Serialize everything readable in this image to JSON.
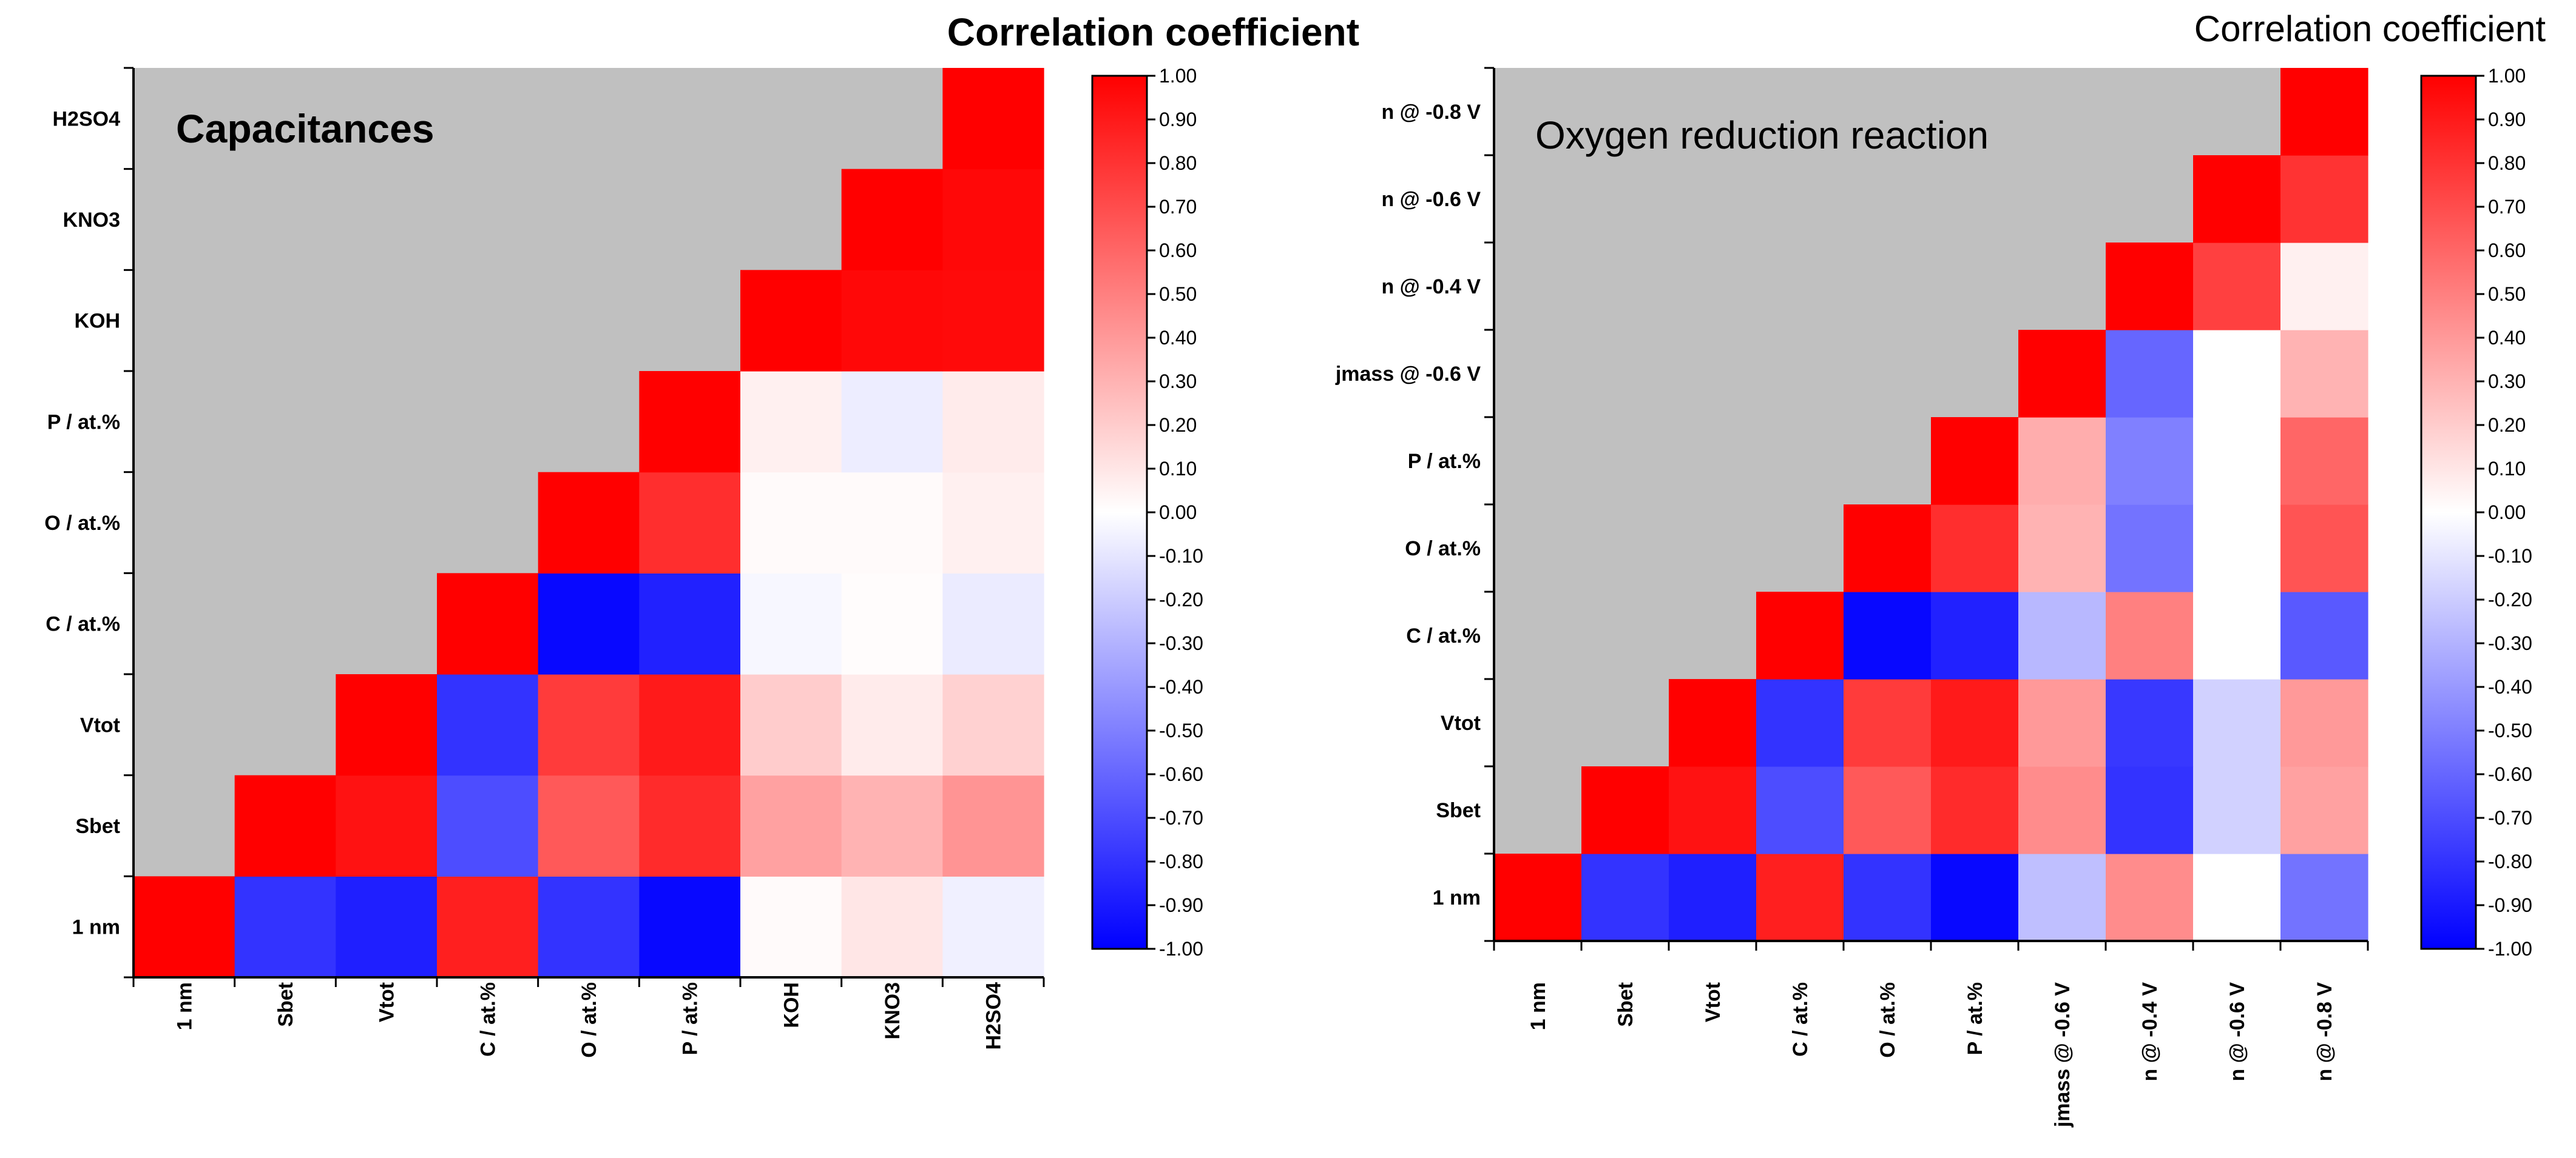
{
  "chart_data": [
    {
      "type": "heatmap",
      "title": "Capacitances",
      "colorbar_title": "Correlation coefficient",
      "x_labels": [
        "1 nm",
        "Sbet",
        "Vtot",
        "C / at.%",
        "O / at.%",
        "P / at.%",
        "KOH",
        "KNO3",
        "H2SO4"
      ],
      "y_labels": [
        "1 nm",
        "Sbet",
        "Vtot",
        "C / at.%",
        "O / at.%",
        "P / at.%",
        "KOH",
        "KNO3",
        "H2SO4"
      ],
      "values": [
        [
          1.0,
          -0.8,
          -0.88,
          0.88,
          -0.8,
          -0.97,
          0.02,
          0.1,
          -0.06
        ],
        [
          null,
          1.0,
          0.93,
          -0.7,
          0.65,
          0.83,
          0.37,
          0.3,
          0.42
        ],
        [
          null,
          null,
          1.0,
          -0.8,
          0.77,
          0.9,
          0.2,
          0.08,
          0.18
        ],
        [
          null,
          null,
          null,
          1.0,
          -0.97,
          -0.87,
          -0.03,
          0.01,
          -0.08
        ],
        [
          null,
          null,
          null,
          null,
          1.0,
          0.82,
          0.02,
          0.02,
          0.06
        ],
        [
          null,
          null,
          null,
          null,
          null,
          1.0,
          0.06,
          -0.07,
          0.08
        ],
        [
          null,
          null,
          null,
          null,
          null,
          null,
          1.0,
          0.97,
          0.96
        ],
        [
          null,
          null,
          null,
          null,
          null,
          null,
          null,
          1.0,
          0.97
        ],
        [
          null,
          null,
          null,
          null,
          null,
          null,
          null,
          null,
          1.0
        ]
      ],
      "zlim": [
        -1.0,
        1.0
      ]
    },
    {
      "type": "heatmap",
      "title": "Oxygen reduction reaction",
      "colorbar_title": "Correlation coefficient",
      "x_labels": [
        "1 nm",
        "Sbet",
        "Vtot",
        "C / at.%",
        "O / at.%",
        "P / at.%",
        "jmass @ -0.6 V",
        "n @ -0.4 V",
        "n @ -0.6 V",
        "n @ -0.8 V"
      ],
      "y_labels": [
        "1 nm",
        "Sbet",
        "Vtot",
        "C / at.%",
        "O / at.%",
        "P / at.%",
        "jmass @ -0.6 V",
        "n @ -0.4 V",
        "n @ -0.6 V",
        "n @ -0.8 V"
      ],
      "values": [
        [
          1.0,
          -0.8,
          -0.88,
          0.88,
          -0.8,
          -0.97,
          -0.25,
          0.45,
          0.0,
          -0.55
        ],
        [
          null,
          1.0,
          0.93,
          -0.7,
          0.65,
          0.83,
          0.45,
          -0.8,
          -0.18,
          0.37
        ],
        [
          null,
          null,
          1.0,
          -0.8,
          0.77,
          0.9,
          0.4,
          -0.78,
          -0.18,
          0.4
        ],
        [
          null,
          null,
          null,
          1.0,
          -0.97,
          -0.87,
          -0.28,
          0.5,
          0.0,
          -0.65
        ],
        [
          null,
          null,
          null,
          null,
          1.0,
          0.82,
          0.3,
          -0.55,
          0.0,
          0.67
        ],
        [
          null,
          null,
          null,
          null,
          null,
          1.0,
          0.32,
          -0.5,
          0.0,
          0.6
        ],
        [
          null,
          null,
          null,
          null,
          null,
          null,
          1.0,
          -0.6,
          0.0,
          0.3
        ],
        [
          null,
          null,
          null,
          null,
          null,
          null,
          null,
          1.0,
          0.75,
          0.06
        ],
        [
          null,
          null,
          null,
          null,
          null,
          null,
          null,
          null,
          1.0,
          0.8
        ],
        [
          null,
          null,
          null,
          null,
          null,
          null,
          null,
          null,
          null,
          1.0
        ]
      ],
      "zlim": [
        -1.0,
        1.0
      ]
    }
  ],
  "colorbar": {
    "ticks": [
      "1.00",
      "0.90",
      "0.80",
      "0.70",
      "0.60",
      "0.50",
      "0.40",
      "0.30",
      "0.20",
      "0.10",
      "0.00",
      "-0.10",
      "-0.20",
      "-0.30",
      "-0.40",
      "-0.50",
      "-0.60",
      "-0.70",
      "-0.80",
      "-0.90",
      "-1.00"
    ]
  },
  "colors": {
    "positive": "#ff0000",
    "neutral": "#ffffff",
    "negative": "#0000ff",
    "masked": "#c0c0c0"
  }
}
